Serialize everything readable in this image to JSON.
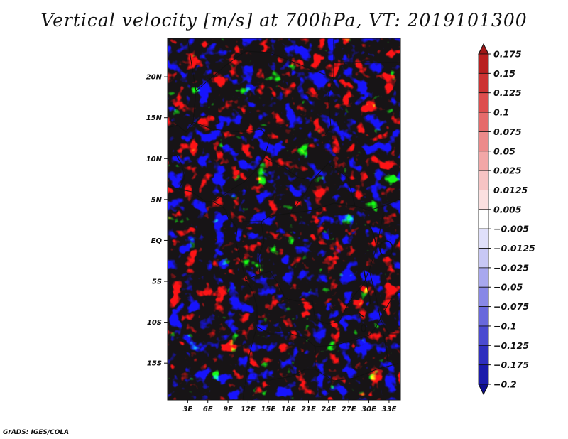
{
  "title": "Vertical velocity [m/s] at 700hPa, VT: 2019101300",
  "credit": "GrADS: IGES/COLA",
  "map": {
    "lon_range": [
      0,
      34.7
    ],
    "lat_range": [
      -19.5,
      24.7
    ],
    "lat_ticks": [
      {
        "lat": 20,
        "label": "20N"
      },
      {
        "lat": 15,
        "label": "15N"
      },
      {
        "lat": 10,
        "label": "10N"
      },
      {
        "lat": 5,
        "label": "5N"
      },
      {
        "lat": 0,
        "label": "EQ"
      },
      {
        "lat": -5,
        "label": "5S"
      },
      {
        "lat": -10,
        "label": "10S"
      },
      {
        "lat": -15,
        "label": "15S"
      }
    ],
    "lon_ticks": [
      {
        "lon": 3,
        "label": "3E"
      },
      {
        "lon": 6,
        "label": "6E"
      },
      {
        "lon": 9,
        "label": "9E"
      },
      {
        "lon": 12,
        "label": "12E"
      },
      {
        "lon": 15,
        "label": "15E"
      },
      {
        "lon": 18,
        "label": "18E"
      },
      {
        "lon": 21,
        "label": "21E"
      },
      {
        "lon": 24,
        "label": "24E"
      },
      {
        "lon": 27,
        "label": "27E"
      },
      {
        "lon": 30,
        "label": "30E"
      },
      {
        "lon": 33,
        "label": "33E"
      }
    ],
    "field_colors": {
      "strong_up": "#c92c2c",
      "up": "#ef9a9a",
      "weak_up": "#fbd7d7",
      "neutral": "#ffffff",
      "weak_down": "#d7d7f6",
      "down": "#9999ee",
      "strong_down": "#3131c4"
    }
  },
  "colorbar": {
    "labels": [
      "0.175",
      "0.15",
      "0.125",
      "0.1",
      "0.075",
      "0.05",
      "0.025",
      "0.0125",
      "0.005",
      "−0.005",
      "−0.0125",
      "−0.025",
      "−0.05",
      "−0.075",
      "−0.1",
      "−0.125",
      "−0.175",
      "−0.2"
    ],
    "colors": [
      "#a01818",
      "#b82020",
      "#cc3333",
      "#dd4e4e",
      "#e56b6b",
      "#ec8a8a",
      "#f2a7a7",
      "#f7c4c4",
      "#fbe0e0",
      "#ffffff",
      "#e0e0fa",
      "#c8c8f4",
      "#a8a8ee",
      "#8888e6",
      "#6868dc",
      "#4a4ad0",
      "#2e2ebe",
      "#1a1aaa",
      "#0d0d90"
    ]
  }
}
